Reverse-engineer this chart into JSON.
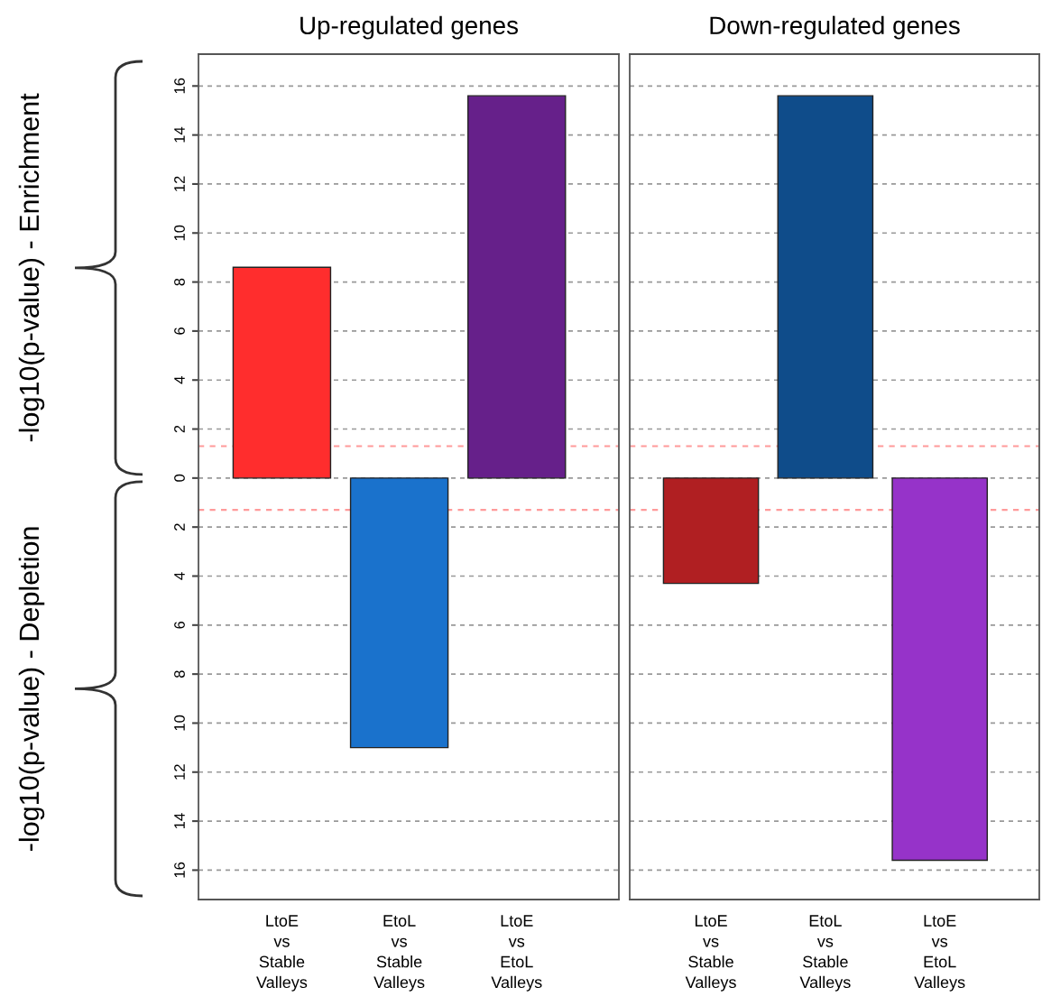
{
  "chart_data": [
    {
      "type": "bar",
      "title": "Up-regulated genes",
      "categories": [
        "LtoE\nvs\nStable\nValleys",
        "EtoL\nvs\nStable\nValleys",
        "LtoE\nvs\nEtoL\nValleys"
      ],
      "values": [
        8.6,
        -11.0,
        15.6
      ],
      "colors": [
        "#ff2d2d",
        "#1a72cc",
        "#66208a"
      ],
      "ylim": [
        -17.2,
        17.3
      ],
      "yticks": [
        {
          "value": 16,
          "label": "16"
        },
        {
          "value": 14,
          "label": "14"
        },
        {
          "value": 12,
          "label": "12"
        },
        {
          "value": 10,
          "label": "10"
        },
        {
          "value": 8,
          "label": "8"
        },
        {
          "value": 6,
          "label": "6"
        },
        {
          "value": 4,
          "label": "4"
        },
        {
          "value": 2,
          "label": "2"
        },
        {
          "value": 0,
          "label": "0"
        },
        {
          "value": -2,
          "label": "2"
        },
        {
          "value": -4,
          "label": "4"
        },
        {
          "value": -6,
          "label": "6"
        },
        {
          "value": -8,
          "label": "8"
        },
        {
          "value": -10,
          "label": "10"
        },
        {
          "value": -12,
          "label": "12"
        },
        {
          "value": -14,
          "label": "14"
        },
        {
          "value": -16,
          "label": "16"
        }
      ],
      "grid": "y",
      "ref_lines": [
        {
          "axis": "y",
          "value": 1.3,
          "color": "#ff9a9a",
          "line_style": "dashed"
        },
        {
          "axis": "y",
          "value": -1.3,
          "color": "#ff9a9a",
          "line_style": "dashed"
        }
      ],
      "annotations": [
        "-log10(p-value) - Enrichment",
        "-log10(p-value) - Depletion"
      ]
    },
    {
      "type": "bar",
      "title": "Down-regulated genes",
      "categories": [
        "LtoE\nvs\nStable\nValleys",
        "EtoL\nvs\nStable\nValleys",
        "LtoE\nvs\nEtoL\nValleys"
      ],
      "values": [
        -4.3,
        15.6,
        -15.6
      ],
      "colors": [
        "#b01f22",
        "#0f4c8a",
        "#9633c9"
      ],
      "ylim": [
        -17.2,
        17.3
      ],
      "yticks": [
        16,
        14,
        12,
        10,
        8,
        6,
        4,
        2,
        0,
        -2,
        -4,
        -6,
        -8,
        -10,
        -12,
        -14,
        -16
      ],
      "grid": "y",
      "tick_labels": "x",
      "ref_lines": [
        {
          "axis": "y",
          "value": 1.3,
          "color": "#ff9a9a",
          "line_style": "dashed"
        },
        {
          "axis": "y",
          "value": -1.3,
          "color": "#ff9a9a",
          "line_style": "dashed"
        }
      ]
    }
  ]
}
